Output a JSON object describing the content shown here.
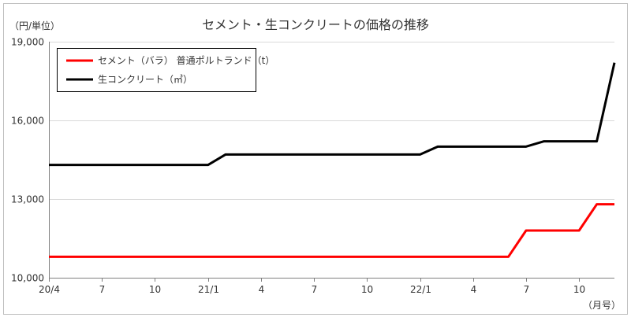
{
  "chart_data": {
    "type": "line",
    "title": "セメント・生コンクリートの価格の推移",
    "y_unit_label": "（円/単位）",
    "x_unit_label": "（月号）",
    "ylim": [
      10000,
      19000
    ],
    "y_ticks": [
      10000,
      13000,
      16000,
      19000
    ],
    "y_tick_labels": [
      "10,000",
      "13,000",
      "16,000",
      "19,000"
    ],
    "x_tick_labels": [
      "20/4",
      "7",
      "10",
      "21/1",
      "4",
      "7",
      "10",
      "22/1",
      "4",
      "7",
      "10"
    ],
    "grid": true,
    "legend_position": "top-left",
    "n_months": 33,
    "series": [
      {
        "name": "セメント（バラ） 普通ポルトランド（t）",
        "color": "#ff0000",
        "values": [
          10800,
          10800,
          10800,
          10800,
          10800,
          10800,
          10800,
          10800,
          10800,
          10800,
          10800,
          10800,
          10800,
          10800,
          10800,
          10800,
          10800,
          10800,
          10800,
          10800,
          10800,
          10800,
          10800,
          10800,
          10800,
          10800,
          10800,
          11800,
          11800,
          11800,
          11800,
          12800,
          12800
        ]
      },
      {
        "name": "生コンクリート（㎥）",
        "color": "#000000",
        "values": [
          14300,
          14300,
          14300,
          14300,
          14300,
          14300,
          14300,
          14300,
          14300,
          14300,
          14700,
          14700,
          14700,
          14700,
          14700,
          14700,
          14700,
          14700,
          14700,
          14700,
          14700,
          14700,
          15000,
          15000,
          15000,
          15000,
          15000,
          15000,
          15200,
          15200,
          15200,
          15200,
          18200
        ]
      }
    ]
  }
}
